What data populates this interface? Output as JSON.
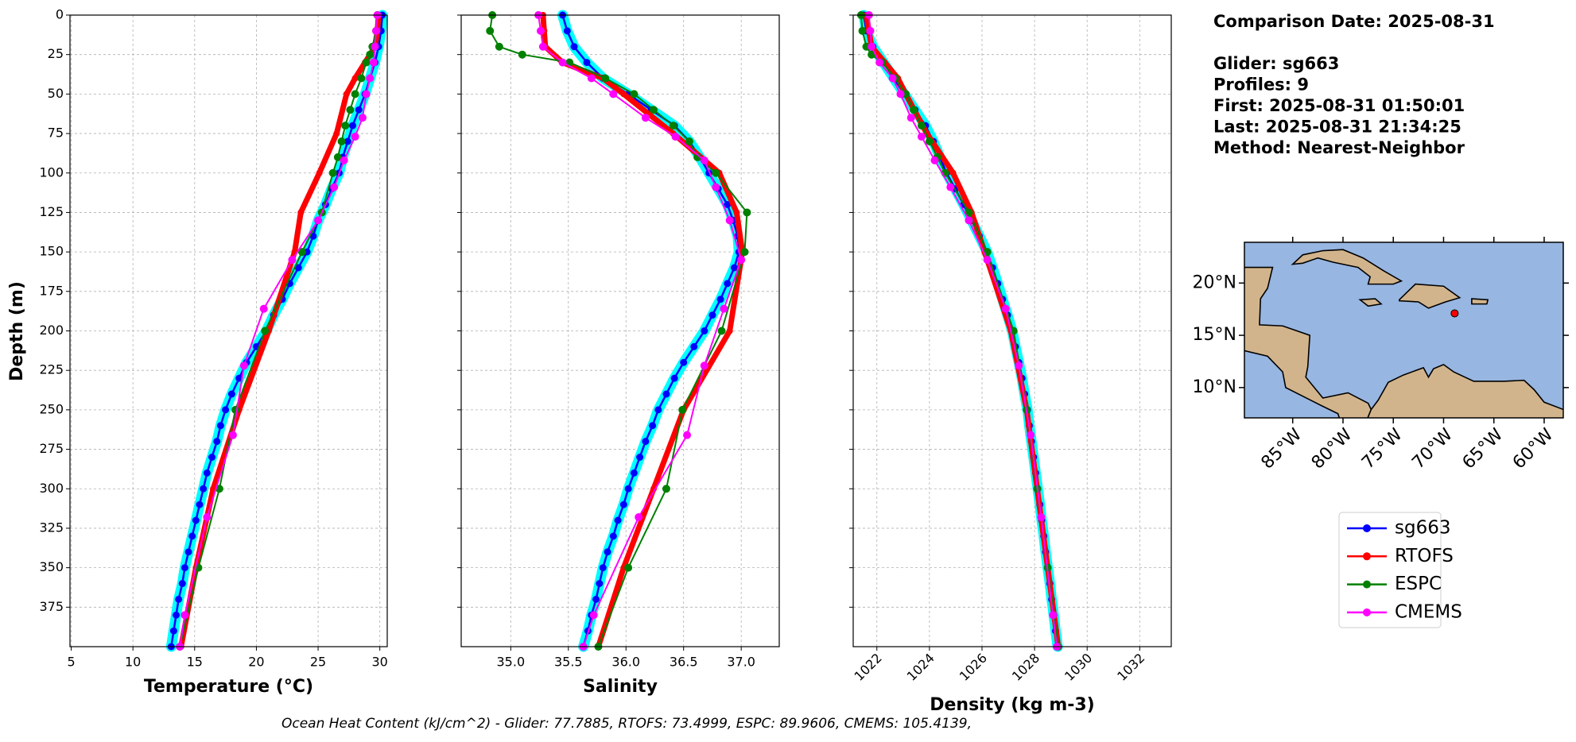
{
  "chart_data": {
    "type": "profile",
    "ylabel": "Depth (m)",
    "ylim": [
      0,
      400
    ],
    "invert_y": true,
    "yticks": [
      0,
      25,
      50,
      75,
      100,
      125,
      150,
      175,
      200,
      225,
      250,
      275,
      300,
      325,
      350,
      375
    ],
    "grid": true,
    "panels": [
      {
        "xlabel": "Temperature (°C)",
        "xlim": [
          4.9,
          30.6
        ],
        "xticks": [
          5,
          10,
          15,
          20,
          25,
          30
        ]
      },
      {
        "xlabel": "Salinity",
        "xlim": [
          34.57,
          37.33
        ],
        "xticks": [
          {
            "value": 35,
            "label": "35.0"
          },
          35.5,
          {
            "value": 36,
            "label": "36.0"
          },
          36.5,
          {
            "value": 37,
            "label": "37.0"
          }
        ]
      },
      {
        "xlabel": "Density (kg m-3)",
        "xlim": [
          1021.1,
          1033.2
        ],
        "xticks": [
          1022,
          1024,
          1026,
          1028,
          1030,
          1032
        ],
        "xtick_rotation": 45
      }
    ],
    "series": [
      {
        "name": "sg663",
        "color": "#0000ff",
        "band_color": "#00ffff",
        "depths": [
          0,
          10,
          20,
          30,
          40,
          50,
          60,
          70,
          80,
          90,
          100,
          110,
          120,
          130,
          140,
          150,
          160,
          170,
          180,
          190,
          200,
          210,
          220,
          230,
          240,
          250,
          260,
          270,
          280,
          290,
          300,
          310,
          320,
          330,
          340,
          350,
          360,
          370,
          380,
          390,
          400
        ],
        "values": [
          [
            30.2,
            30.1,
            29.9,
            29.6,
            29.2,
            28.8,
            28.3,
            27.8,
            27.4,
            27.0,
            26.7,
            26.1,
            25.6,
            25.0,
            24.6,
            24.1,
            23.4,
            22.7,
            22.1,
            21.4,
            20.8,
            20.0,
            19.2,
            18.6,
            18.0,
            17.5,
            17.1,
            16.8,
            16.4,
            16.0,
            15.7,
            15.4,
            15.1,
            14.8,
            14.5,
            14.2,
            14.0,
            13.7,
            13.5,
            13.3,
            13.1
          ],
          [
            35.45,
            35.49,
            35.55,
            35.66,
            35.8,
            36.02,
            36.22,
            36.42,
            36.55,
            36.64,
            36.72,
            36.8,
            36.88,
            36.93,
            36.97,
            36.98,
            36.94,
            36.88,
            36.82,
            36.75,
            36.68,
            36.59,
            36.5,
            36.42,
            36.35,
            36.28,
            36.23,
            36.17,
            36.12,
            36.07,
            36.02,
            35.98,
            35.93,
            35.89,
            35.84,
            35.8,
            35.77,
            35.74,
            35.7,
            35.67,
            35.63
          ],
          [
            1021.5,
            1021.6,
            1021.85,
            1022.25,
            1022.65,
            1023.04,
            1023.45,
            1023.85,
            1024.15,
            1024.4,
            1024.65,
            1024.98,
            1025.3,
            1025.6,
            1025.9,
            1026.19,
            1026.4,
            1026.6,
            1026.78,
            1026.97,
            1027.15,
            1027.27,
            1027.4,
            1027.52,
            1027.62,
            1027.73,
            1027.8,
            1027.88,
            1027.96,
            1028.04,
            1028.12,
            1028.2,
            1028.27,
            1028.35,
            1028.42,
            1028.5,
            1028.58,
            1028.65,
            1028.73,
            1028.8,
            1028.88
          ]
        ]
      },
      {
        "name": "RTOFS",
        "color": "#ff0000",
        "depths": [
          0,
          10,
          20,
          30,
          40,
          50,
          75,
          100,
          125,
          150,
          200,
          250,
          300,
          350,
          400
        ],
        "values": [
          [
            29.9,
            29.8,
            29.6,
            28.8,
            28.0,
            27.3,
            26.5,
            25.1,
            23.6,
            23.1,
            21.0,
            18.6,
            16.5,
            15.1,
            13.9
          ],
          [
            35.28,
            35.29,
            35.3,
            35.45,
            35.8,
            35.98,
            36.41,
            36.81,
            36.96,
            37.01,
            36.9,
            36.5,
            36.24,
            35.98,
            35.76
          ],
          [
            1021.6,
            1021.7,
            1021.8,
            1022.3,
            1022.8,
            1023.1,
            1023.9,
            1024.9,
            1025.6,
            1026.1,
            1027.1,
            1027.7,
            1028.1,
            1028.5,
            1028.9
          ]
        ]
      },
      {
        "name": "ESPC",
        "color": "#008000",
        "depths": [
          0,
          10,
          20,
          25,
          30,
          40,
          50,
          60,
          70,
          80,
          90,
          100,
          125,
          150,
          200,
          250,
          300,
          350,
          400
        ],
        "values": [
          [
            29.8,
            29.7,
            29.4,
            29.2,
            28.9,
            28.5,
            28.0,
            27.6,
            27.2,
            26.9,
            26.6,
            26.2,
            25.3,
            23.7,
            20.7,
            18.3,
            17.0,
            15.3,
            13.8
          ],
          [
            34.84,
            34.82,
            34.9,
            35.1,
            35.51,
            35.82,
            36.07,
            36.24,
            36.41,
            36.55,
            36.62,
            36.78,
            37.05,
            37.03,
            36.83,
            36.49,
            36.35,
            36.02,
            35.76
          ],
          [
            1021.4,
            1021.45,
            1021.6,
            1021.8,
            1022.2,
            1022.7,
            1023.1,
            1023.4,
            1023.7,
            1024.0,
            1024.3,
            1024.6,
            1025.5,
            1026.2,
            1027.2,
            1027.7,
            1028.1,
            1028.5,
            1028.9
          ]
        ]
      },
      {
        "name": "CMEMS",
        "color": "#ff00ff",
        "depths": [
          0,
          10,
          20,
          30,
          40,
          50,
          65,
          77,
          92,
          109,
          130,
          155,
          186,
          222,
          266,
          318,
          380,
          400
        ],
        "values": [
          [
            29.8,
            29.7,
            29.6,
            29.5,
            29.2,
            28.9,
            28.6,
            28.0,
            27.1,
            26.3,
            25.0,
            22.9,
            20.6,
            19.0,
            18.1,
            16.0,
            14.2,
            13.8
          ],
          [
            35.24,
            35.26,
            35.28,
            35.45,
            35.7,
            35.89,
            36.17,
            36.43,
            36.68,
            36.78,
            36.9,
            37.0,
            36.85,
            36.68,
            36.53,
            36.11,
            35.72,
            35.63
          ],
          [
            1021.7,
            1021.75,
            1021.8,
            1022.1,
            1022.6,
            1022.9,
            1023.3,
            1023.7,
            1024.2,
            1024.8,
            1025.5,
            1026.2,
            1026.9,
            1027.4,
            1027.85,
            1028.25,
            1028.7,
            1028.85
          ]
        ]
      }
    ]
  },
  "info": {
    "comparison": "Comparison Date: 2025-08-31",
    "details": [
      "Glider: sg663",
      "Profiles: 9",
      "First: 2025-08-31 01:50:01",
      "Last: 2025-08-31 21:34:25",
      "Method: Nearest-Neighbor"
    ]
  },
  "footer": "Ocean Heat Content (kJ/cm^2) - Glider: 77.7885,  RTOFS: 73.4999,  ESPC: 89.9606,  CMEMS: 105.4139,",
  "map": {
    "xlim": [
      -89.8,
      -58.1
    ],
    "ylim": [
      7.1,
      23.9
    ],
    "xticks": [
      {
        "value": -85,
        "label": "85°W"
      },
      {
        "value": -80,
        "label": "80°W"
      },
      {
        "value": -75,
        "label": "75°W"
      },
      {
        "value": -70,
        "label": "70°W"
      },
      {
        "value": -65,
        "label": "65°W"
      },
      {
        "value": -60,
        "label": "60°W"
      }
    ],
    "yticks": [
      {
        "value": 10,
        "label": "10°N"
      },
      {
        "value": 15,
        "label": "15°N"
      },
      {
        "value": 20,
        "label": "20°N"
      }
    ],
    "glider_position": {
      "lon": -68.9,
      "lat": 17.1
    },
    "marker_color": "#ff0000"
  }
}
